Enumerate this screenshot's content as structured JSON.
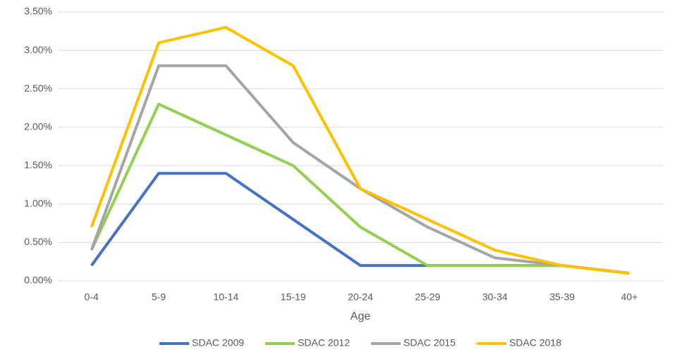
{
  "chart_data": {
    "type": "line",
    "x_label": "Age",
    "categories": [
      "0-4",
      "5-9",
      "10-14",
      "15-19",
      "20-24",
      "25-29",
      "30-34",
      "35-39",
      "40+"
    ],
    "series": [
      {
        "name": "SDAC 2009",
        "color": "#4472c4",
        "values": [
          0.2,
          1.4,
          1.4,
          0.8,
          0.2,
          0.2,
          0.2,
          0.2,
          0.1
        ]
      },
      {
        "name": "SDAC 2012",
        "color": "#92d050",
        "values": [
          0.4,
          2.3,
          1.9,
          1.5,
          0.7,
          0.2,
          0.2,
          0.2,
          0.1
        ]
      },
      {
        "name": "SDAC 2015",
        "color": "#a5a5a5",
        "values": [
          0.4,
          2.8,
          2.8,
          1.8,
          1.2,
          0.7,
          0.3,
          0.2,
          0.1
        ]
      },
      {
        "name": "SDAC 2018",
        "color": "#ffc000",
        "values": [
          0.7,
          3.1,
          3.3,
          2.8,
          1.2,
          0.8,
          0.4,
          0.2,
          0.1
        ]
      }
    ],
    "ylim": [
      0,
      3.5
    ],
    "yticks": [
      {
        "value": 0,
        "label": "0.00%"
      },
      {
        "value": 0.5,
        "label": "0.50%"
      },
      {
        "value": 1,
        "label": "1.00%"
      },
      {
        "value": 1.5,
        "label": "1.50%"
      },
      {
        "value": 2,
        "label": "2.00%"
      },
      {
        "value": 2.5,
        "label": "2.50%"
      },
      {
        "value": 3,
        "label": "3.00%"
      },
      {
        "value": 3.5,
        "label": "3.50%"
      }
    ],
    "grid": true,
    "legend": "bottom"
  }
}
